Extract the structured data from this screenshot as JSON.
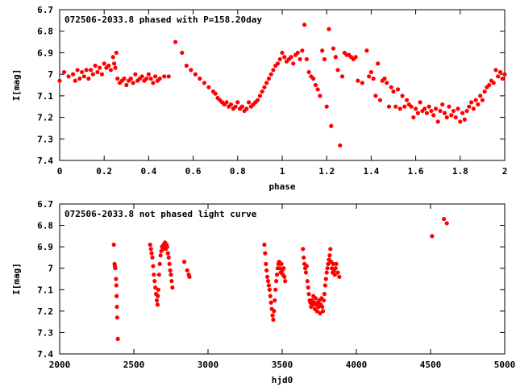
{
  "colors": {
    "points": "#ff0000",
    "axes": "#000000",
    "background": "#ffffff"
  },
  "chart_data": [
    {
      "type": "scatter",
      "title": "072506-2033.8 phased with P=158.20day",
      "xlabel": "phase",
      "ylabel": "I[mag]",
      "xlim": [
        0,
        2
      ],
      "ylim": [
        6.7,
        7.4
      ],
      "y_inverted": true,
      "legend": "none",
      "grid": false,
      "xticks": [
        "0",
        "0.2",
        "0.4",
        "0.6",
        "0.8",
        "1",
        "1.2",
        "1.4",
        "1.6",
        "1.8",
        "2"
      ],
      "yticks": [
        "6.7",
        "6.8",
        "6.9",
        "7",
        "7.1",
        "7.2",
        "7.3",
        "7.4"
      ],
      "marker": "filled-circle",
      "points": [
        [
          0.0,
          7.03
        ],
        [
          0.02,
          6.99
        ],
        [
          0.04,
          7.01
        ],
        [
          0.06,
          7.0
        ],
        [
          0.07,
          7.03
        ],
        [
          0.08,
          6.98
        ],
        [
          0.09,
          7.02
        ],
        [
          0.1,
          6.99
        ],
        [
          0.11,
          7.01
        ],
        [
          0.12,
          6.98
        ],
        [
          0.13,
          7.02
        ],
        [
          0.14,
          6.98
        ],
        [
          0.15,
          7.0
        ],
        [
          0.16,
          6.96
        ],
        [
          0.17,
          6.99
        ],
        [
          0.18,
          6.97
        ],
        [
          0.19,
          7.0
        ],
        [
          0.2,
          6.95
        ],
        [
          0.21,
          6.97
        ],
        [
          0.22,
          6.96
        ],
        [
          0.23,
          6.98
        ],
        [
          0.24,
          6.92
        ],
        [
          0.245,
          6.95
        ],
        [
          0.25,
          6.97
        ],
        [
          0.255,
          6.9
        ],
        [
          0.26,
          7.02
        ],
        [
          0.27,
          7.04
        ],
        [
          0.28,
          7.03
        ],
        [
          0.29,
          7.02
        ],
        [
          0.3,
          7.05
        ],
        [
          0.31,
          7.03
        ],
        [
          0.32,
          7.02
        ],
        [
          0.33,
          7.04
        ],
        [
          0.34,
          7.0
        ],
        [
          0.35,
          7.03
        ],
        [
          0.36,
          7.02
        ],
        [
          0.37,
          7.01
        ],
        [
          0.38,
          7.03
        ],
        [
          0.39,
          7.02
        ],
        [
          0.4,
          7.0
        ],
        [
          0.41,
          7.02
        ],
        [
          0.42,
          7.04
        ],
        [
          0.43,
          7.01
        ],
        [
          0.44,
          7.03
        ],
        [
          0.45,
          7.02
        ],
        [
          0.47,
          7.01
        ],
        [
          0.49,
          7.01
        ],
        [
          0.52,
          6.85
        ],
        [
          0.55,
          6.9
        ],
        [
          0.57,
          6.96
        ],
        [
          0.59,
          6.98
        ],
        [
          0.61,
          7.0
        ],
        [
          0.63,
          7.02
        ],
        [
          0.65,
          7.04
        ],
        [
          0.67,
          7.06
        ],
        [
          0.69,
          7.08
        ],
        [
          0.7,
          7.09
        ],
        [
          0.71,
          7.11
        ],
        [
          0.72,
          7.12
        ],
        [
          0.73,
          7.13
        ],
        [
          0.74,
          7.14
        ],
        [
          0.75,
          7.13
        ],
        [
          0.76,
          7.15
        ],
        [
          0.77,
          7.14
        ],
        [
          0.78,
          7.16
        ],
        [
          0.79,
          7.15
        ],
        [
          0.8,
          7.13
        ],
        [
          0.81,
          7.16
        ],
        [
          0.82,
          7.15
        ],
        [
          0.83,
          7.17
        ],
        [
          0.84,
          7.16
        ],
        [
          0.85,
          7.13
        ],
        [
          0.86,
          7.15
        ],
        [
          0.87,
          7.14
        ],
        [
          0.88,
          7.13
        ],
        [
          0.89,
          7.12
        ],
        [
          0.9,
          7.1
        ],
        [
          0.91,
          7.08
        ],
        [
          0.92,
          7.06
        ],
        [
          0.93,
          7.04
        ],
        [
          0.94,
          7.02
        ],
        [
          0.95,
          7.0
        ],
        [
          0.96,
          6.98
        ],
        [
          0.97,
          6.96
        ],
        [
          0.98,
          6.95
        ],
        [
          0.99,
          6.93
        ],
        [
          1.0,
          6.9
        ],
        [
          1.01,
          6.92
        ],
        [
          1.02,
          6.94
        ],
        [
          1.03,
          6.93
        ],
        [
          1.04,
          6.92
        ],
        [
          1.05,
          6.95
        ],
        [
          1.06,
          6.91
        ],
        [
          1.07,
          6.9
        ],
        [
          1.08,
          6.93
        ],
        [
          1.09,
          6.89
        ],
        [
          1.1,
          6.77
        ],
        [
          1.11,
          6.93
        ],
        [
          1.12,
          6.99
        ],
        [
          1.13,
          7.01
        ],
        [
          1.14,
          7.02
        ],
        [
          1.15,
          7.05
        ],
        [
          1.16,
          7.07
        ],
        [
          1.17,
          7.1
        ],
        [
          1.18,
          6.89
        ],
        [
          1.19,
          6.93
        ],
        [
          1.2,
          7.15
        ],
        [
          1.21,
          6.79
        ],
        [
          1.22,
          7.24
        ],
        [
          1.23,
          6.88
        ],
        [
          1.24,
          6.92
        ],
        [
          1.25,
          6.98
        ],
        [
          1.26,
          7.33
        ],
        [
          1.27,
          7.01
        ],
        [
          1.28,
          6.9
        ],
        [
          1.29,
          6.91
        ],
        [
          1.3,
          6.91
        ],
        [
          1.31,
          6.92
        ],
        [
          1.32,
          6.93
        ],
        [
          1.33,
          6.92
        ],
        [
          1.34,
          7.03
        ],
        [
          1.36,
          7.04
        ],
        [
          1.38,
          6.89
        ],
        [
          1.39,
          7.01
        ],
        [
          1.4,
          6.99
        ],
        [
          1.41,
          7.02
        ],
        [
          1.42,
          7.1
        ],
        [
          1.43,
          6.95
        ],
        [
          1.44,
          7.12
        ],
        [
          1.45,
          7.03
        ],
        [
          1.46,
          7.02
        ],
        [
          1.47,
          7.04
        ],
        [
          1.48,
          7.15
        ],
        [
          1.49,
          7.06
        ],
        [
          1.5,
          7.08
        ],
        [
          1.51,
          7.15
        ],
        [
          1.52,
          7.07
        ],
        [
          1.53,
          7.16
        ],
        [
          1.54,
          7.1
        ],
        [
          1.55,
          7.15
        ],
        [
          1.56,
          7.12
        ],
        [
          1.57,
          7.14
        ],
        [
          1.58,
          7.15
        ],
        [
          1.59,
          7.2
        ],
        [
          1.6,
          7.16
        ],
        [
          1.61,
          7.18
        ],
        [
          1.62,
          7.13
        ],
        [
          1.63,
          7.17
        ],
        [
          1.64,
          7.16
        ],
        [
          1.65,
          7.18
        ],
        [
          1.66,
          7.15
        ],
        [
          1.67,
          7.17
        ],
        [
          1.68,
          7.19
        ],
        [
          1.69,
          7.16
        ],
        [
          1.7,
          7.22
        ],
        [
          1.71,
          7.17
        ],
        [
          1.72,
          7.14
        ],
        [
          1.73,
          7.18
        ],
        [
          1.74,
          7.2
        ],
        [
          1.75,
          7.15
        ],
        [
          1.76,
          7.19
        ],
        [
          1.77,
          7.17
        ],
        [
          1.78,
          7.2
        ],
        [
          1.79,
          7.16
        ],
        [
          1.8,
          7.22
        ],
        [
          1.81,
          7.18
        ],
        [
          1.82,
          7.21
        ],
        [
          1.83,
          7.17
        ],
        [
          1.84,
          7.15
        ],
        [
          1.85,
          7.13
        ],
        [
          1.86,
          7.16
        ],
        [
          1.87,
          7.12
        ],
        [
          1.88,
          7.14
        ],
        [
          1.89,
          7.1
        ],
        [
          1.9,
          7.12
        ],
        [
          1.91,
          7.08
        ],
        [
          1.92,
          7.06
        ],
        [
          1.93,
          7.05
        ],
        [
          1.94,
          7.03
        ],
        [
          1.95,
          7.04
        ],
        [
          1.96,
          6.98
        ],
        [
          1.97,
          7.01
        ],
        [
          1.98,
          6.99
        ],
        [
          1.99,
          7.02
        ],
        [
          2.0,
          7.0
        ]
      ]
    },
    {
      "type": "scatter",
      "title": "072506-2033.8 not phased light curve",
      "xlabel": "hjd0",
      "ylabel": "I[mag]",
      "xlim": [
        2000,
        5000
      ],
      "ylim": [
        6.7,
        7.4
      ],
      "y_inverted": true,
      "legend": "none",
      "grid": false,
      "xticks": [
        "2000",
        "2500",
        "3000",
        "3500",
        "4000",
        "4500",
        "5000"
      ],
      "yticks": [
        "6.7",
        "6.8",
        "6.9",
        "7",
        "7.1",
        "7.2",
        "7.3",
        "7.4"
      ],
      "marker": "filled-circle",
      "points": [
        [
          2365,
          6.89
        ],
        [
          2370,
          6.98
        ],
        [
          2372,
          6.99
        ],
        [
          2375,
          7.0
        ],
        [
          2380,
          7.05
        ],
        [
          2382,
          7.08
        ],
        [
          2384,
          7.13
        ],
        [
          2386,
          7.18
        ],
        [
          2388,
          7.23
        ],
        [
          2392,
          7.33
        ],
        [
          2610,
          6.89
        ],
        [
          2615,
          6.91
        ],
        [
          2620,
          6.93
        ],
        [
          2625,
          6.95
        ],
        [
          2630,
          6.99
        ],
        [
          2635,
          7.03
        ],
        [
          2640,
          7.06
        ],
        [
          2645,
          7.09
        ],
        [
          2650,
          7.12
        ],
        [
          2655,
          7.15
        ],
        [
          2660,
          7.17
        ],
        [
          2662,
          7.13
        ],
        [
          2665,
          7.1
        ],
        [
          2670,
          7.03
        ],
        [
          2675,
          6.98
        ],
        [
          2680,
          6.94
        ],
        [
          2685,
          6.92
        ],
        [
          2690,
          6.9
        ],
        [
          2695,
          6.91
        ],
        [
          2700,
          6.89
        ],
        [
          2705,
          6.9
        ],
        [
          2710,
          6.88
        ],
        [
          2715,
          6.91
        ],
        [
          2720,
          6.89
        ],
        [
          2725,
          6.9
        ],
        [
          2730,
          6.93
        ],
        [
          2735,
          6.95
        ],
        [
          2740,
          6.98
        ],
        [
          2745,
          7.01
        ],
        [
          2750,
          7.03
        ],
        [
          2755,
          7.06
        ],
        [
          2760,
          7.09
        ],
        [
          2840,
          6.97
        ],
        [
          2860,
          7.01
        ],
        [
          2870,
          7.03
        ],
        [
          2875,
          7.04
        ],
        [
          3380,
          6.89
        ],
        [
          3385,
          6.93
        ],
        [
          3390,
          6.98
        ],
        [
          3395,
          7.01
        ],
        [
          3400,
          7.04
        ],
        [
          3405,
          7.06
        ],
        [
          3410,
          7.08
        ],
        [
          3415,
          7.1
        ],
        [
          3420,
          7.13
        ],
        [
          3425,
          7.16
        ],
        [
          3430,
          7.19
        ],
        [
          3435,
          7.22
        ],
        [
          3440,
          7.24
        ],
        [
          3445,
          7.2
        ],
        [
          3450,
          7.15
        ],
        [
          3455,
          7.1
        ],
        [
          3460,
          7.06
        ],
        [
          3465,
          7.03
        ],
        [
          3470,
          7.0
        ],
        [
          3475,
          6.98
        ],
        [
          3480,
          6.97
        ],
        [
          3485,
          7.0
        ],
        [
          3490,
          7.02
        ],
        [
          3495,
          6.98
        ],
        [
          3500,
          7.01
        ],
        [
          3505,
          7.03
        ],
        [
          3510,
          7.0
        ],
        [
          3515,
          7.04
        ],
        [
          3520,
          7.06
        ],
        [
          3640,
          6.91
        ],
        [
          3645,
          6.95
        ],
        [
          3650,
          6.98
        ],
        [
          3655,
          7.0
        ],
        [
          3660,
          7.02
        ],
        [
          3665,
          6.99
        ],
        [
          3670,
          7.06
        ],
        [
          3675,
          7.09
        ],
        [
          3680,
          7.12
        ],
        [
          3685,
          7.15
        ],
        [
          3690,
          7.16
        ],
        [
          3695,
          7.18
        ],
        [
          3700,
          7.15
        ],
        [
          3705,
          7.17
        ],
        [
          3710,
          7.13
        ],
        [
          3715,
          7.16
        ],
        [
          3720,
          7.19
        ],
        [
          3725,
          7.14
        ],
        [
          3730,
          7.17
        ],
        [
          3735,
          7.2
        ],
        [
          3740,
          7.16
        ],
        [
          3745,
          7.18
        ],
        [
          3750,
          7.15
        ],
        [
          3755,
          7.21
        ],
        [
          3760,
          7.17
        ],
        [
          3765,
          7.14
        ],
        [
          3770,
          7.18
        ],
        [
          3775,
          7.2
        ],
        [
          3780,
          7.15
        ],
        [
          3785,
          7.12
        ],
        [
          3790,
          7.08
        ],
        [
          3795,
          7.05
        ],
        [
          3800,
          7.02
        ],
        [
          3805,
          7.0
        ],
        [
          3810,
          6.98
        ],
        [
          3815,
          6.96
        ],
        [
          3820,
          6.94
        ],
        [
          3825,
          6.91
        ],
        [
          3830,
          6.97
        ],
        [
          3835,
          7.0
        ],
        [
          3840,
          7.02
        ],
        [
          3845,
          6.98
        ],
        [
          3850,
          7.01
        ],
        [
          3855,
          7.03
        ],
        [
          3860,
          7.0
        ],
        [
          3865,
          6.98
        ],
        [
          3875,
          7.02
        ],
        [
          3885,
          7.04
        ],
        [
          4510,
          6.85
        ],
        [
          4590,
          6.77
        ],
        [
          4610,
          6.79
        ]
      ]
    }
  ]
}
